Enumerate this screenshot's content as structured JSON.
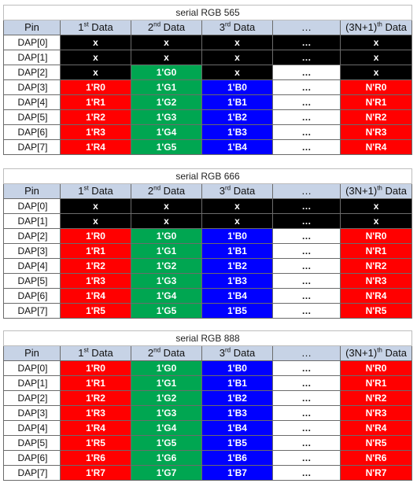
{
  "header": {
    "pin": "Pin",
    "col1": {
      "pre": "1",
      "sup": "st",
      "post": " Data"
    },
    "col2": {
      "pre": "2",
      "sup": "nd",
      "post": " Data"
    },
    "col3": {
      "pre": "3",
      "sup": "rd",
      "post": " Data"
    },
    "col4": {
      "pre": "…",
      "sup": "",
      "post": ""
    },
    "col5": {
      "pre": "(3N+1)",
      "sup": "th",
      "post": " Data"
    }
  },
  "colors": {
    "black": "#000000",
    "red": "#ff0000",
    "green": "#00a651",
    "blue": "#0000ff",
    "white": "#ffffff",
    "header_bg": "#c7d3e6"
  },
  "tables": [
    {
      "title": "serial RGB 565",
      "rows": [
        {
          "pin": "DAP[0]",
          "cells": [
            [
              "x",
              "black"
            ],
            [
              "x",
              "black"
            ],
            [
              "x",
              "black"
            ],
            [
              "…",
              "black"
            ],
            [
              "x",
              "black"
            ]
          ]
        },
        {
          "pin": "DAP[1]",
          "cells": [
            [
              "x",
              "black"
            ],
            [
              "x",
              "black"
            ],
            [
              "x",
              "black"
            ],
            [
              "…",
              "black"
            ],
            [
              "x",
              "black"
            ]
          ]
        },
        {
          "pin": "DAP[2]",
          "cells": [
            [
              "x",
              "black"
            ],
            [
              "1'G0",
              "green"
            ],
            [
              "x",
              "black"
            ],
            [
              "…",
              "white"
            ],
            [
              "x",
              "black"
            ]
          ]
        },
        {
          "pin": "DAP[3]",
          "cells": [
            [
              "1'R0",
              "red"
            ],
            [
              "1'G1",
              "green"
            ],
            [
              "1'B0",
              "blue"
            ],
            [
              "…",
              "white"
            ],
            [
              "N'R0",
              "red"
            ]
          ]
        },
        {
          "pin": "DAP[4]",
          "cells": [
            [
              "1'R1",
              "red"
            ],
            [
              "1'G2",
              "green"
            ],
            [
              "1'B1",
              "blue"
            ],
            [
              "…",
              "white"
            ],
            [
              "N'R1",
              "red"
            ]
          ]
        },
        {
          "pin": "DAP[5]",
          "cells": [
            [
              "1'R2",
              "red"
            ],
            [
              "1'G3",
              "green"
            ],
            [
              "1'B2",
              "blue"
            ],
            [
              "…",
              "white"
            ],
            [
              "N'R2",
              "red"
            ]
          ]
        },
        {
          "pin": "DAP[6]",
          "cells": [
            [
              "1'R3",
              "red"
            ],
            [
              "1'G4",
              "green"
            ],
            [
              "1'B3",
              "blue"
            ],
            [
              "…",
              "white"
            ],
            [
              "N'R3",
              "red"
            ]
          ]
        },
        {
          "pin": "DAP[7]",
          "cells": [
            [
              "1'R4",
              "red"
            ],
            [
              "1'G5",
              "green"
            ],
            [
              "1'B4",
              "blue"
            ],
            [
              "…",
              "white"
            ],
            [
              "N'R4",
              "red"
            ]
          ]
        }
      ]
    },
    {
      "title": "serial RGB 666",
      "rows": [
        {
          "pin": "DAP[0]",
          "cells": [
            [
              "x",
              "black"
            ],
            [
              "x",
              "black"
            ],
            [
              "x",
              "black"
            ],
            [
              "…",
              "black"
            ],
            [
              "x",
              "black"
            ]
          ]
        },
        {
          "pin": "DAP[1]",
          "cells": [
            [
              "x",
              "black"
            ],
            [
              "x",
              "black"
            ],
            [
              "x",
              "black"
            ],
            [
              "…",
              "black"
            ],
            [
              "x",
              "black"
            ]
          ]
        },
        {
          "pin": "DAP[2]",
          "cells": [
            [
              "1'R0",
              "red"
            ],
            [
              "1'G0",
              "green"
            ],
            [
              "1'B0",
              "blue"
            ],
            [
              "…",
              "white"
            ],
            [
              "N'R0",
              "red"
            ]
          ]
        },
        {
          "pin": "DAP[3]",
          "cells": [
            [
              "1'R1",
              "red"
            ],
            [
              "1'G1",
              "green"
            ],
            [
              "1'B1",
              "blue"
            ],
            [
              "…",
              "white"
            ],
            [
              "N'R1",
              "red"
            ]
          ]
        },
        {
          "pin": "DAP[4]",
          "cells": [
            [
              "1'R2",
              "red"
            ],
            [
              "1'G2",
              "green"
            ],
            [
              "1'B2",
              "blue"
            ],
            [
              "…",
              "white"
            ],
            [
              "N'R2",
              "red"
            ]
          ]
        },
        {
          "pin": "DAP[5]",
          "cells": [
            [
              "1'R3",
              "red"
            ],
            [
              "1'G3",
              "green"
            ],
            [
              "1'B3",
              "blue"
            ],
            [
              "…",
              "white"
            ],
            [
              "N'R3",
              "red"
            ]
          ]
        },
        {
          "pin": "DAP[6]",
          "cells": [
            [
              "1'R4",
              "red"
            ],
            [
              "1'G4",
              "green"
            ],
            [
              "1'B4",
              "blue"
            ],
            [
              "…",
              "white"
            ],
            [
              "N'R4",
              "red"
            ]
          ]
        },
        {
          "pin": "DAP[7]",
          "cells": [
            [
              "1'R5",
              "red"
            ],
            [
              "1'G5",
              "green"
            ],
            [
              "1'B5",
              "blue"
            ],
            [
              "…",
              "white"
            ],
            [
              "N'R5",
              "red"
            ]
          ]
        }
      ]
    },
    {
      "title": "serial RGB 888",
      "rows": [
        {
          "pin": "DAP[0]",
          "cells": [
            [
              "1'R0",
              "red"
            ],
            [
              "1'G0",
              "green"
            ],
            [
              "1'B0",
              "blue"
            ],
            [
              "…",
              "white"
            ],
            [
              "N'R0",
              "red"
            ]
          ]
        },
        {
          "pin": "DAP[1]",
          "cells": [
            [
              "1'R1",
              "red"
            ],
            [
              "1'G1",
              "green"
            ],
            [
              "1'B1",
              "blue"
            ],
            [
              "…",
              "white"
            ],
            [
              "N'R1",
              "red"
            ]
          ]
        },
        {
          "pin": "DAP[2]",
          "cells": [
            [
              "1'R2",
              "red"
            ],
            [
              "1'G2",
              "green"
            ],
            [
              "1'B2",
              "blue"
            ],
            [
              "…",
              "white"
            ],
            [
              "N'R2",
              "red"
            ]
          ]
        },
        {
          "pin": "DAP[3]",
          "cells": [
            [
              "1'R3",
              "red"
            ],
            [
              "1'G3",
              "green"
            ],
            [
              "1'B3",
              "blue"
            ],
            [
              "…",
              "white"
            ],
            [
              "N'R3",
              "red"
            ]
          ]
        },
        {
          "pin": "DAP[4]",
          "cells": [
            [
              "1'R4",
              "red"
            ],
            [
              "1'G4",
              "green"
            ],
            [
              "1'B4",
              "blue"
            ],
            [
              "…",
              "white"
            ],
            [
              "N'R4",
              "red"
            ]
          ]
        },
        {
          "pin": "DAP[5]",
          "cells": [
            [
              "1'R5",
              "red"
            ],
            [
              "1'G5",
              "green"
            ],
            [
              "1'B5",
              "blue"
            ],
            [
              "…",
              "white"
            ],
            [
              "N'R5",
              "red"
            ]
          ]
        },
        {
          "pin": "DAP[6]",
          "cells": [
            [
              "1'R6",
              "red"
            ],
            [
              "1'G6",
              "green"
            ],
            [
              "1'B6",
              "blue"
            ],
            [
              "…",
              "white"
            ],
            [
              "N'R6",
              "red"
            ]
          ]
        },
        {
          "pin": "DAP[7]",
          "cells": [
            [
              "1'R7",
              "red"
            ],
            [
              "1'G7",
              "green"
            ],
            [
              "1'B7",
              "blue"
            ],
            [
              "…",
              "white"
            ],
            [
              "N'R7",
              "red"
            ]
          ]
        }
      ]
    }
  ]
}
